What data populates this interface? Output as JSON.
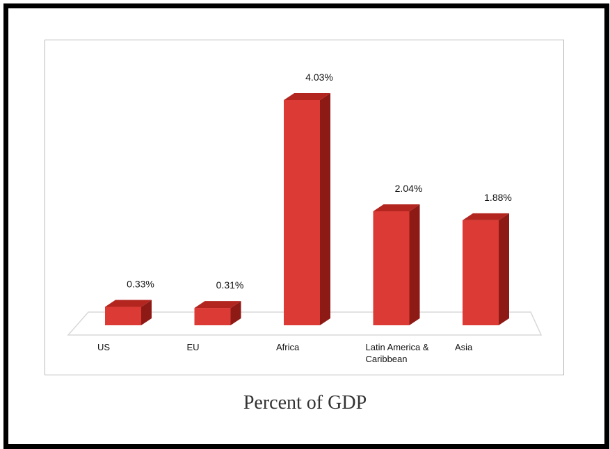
{
  "caption": "Percent of GDP",
  "chart_data": {
    "type": "bar",
    "categories": [
      "US",
      "EU",
      "Africa",
      "Latin America & Caribbean",
      "Asia"
    ],
    "category_lines": [
      [
        "US"
      ],
      [
        "EU"
      ],
      [
        "Africa"
      ],
      [
        "Latin America &",
        "Caribbean"
      ],
      [
        "Asia"
      ]
    ],
    "values": [
      0.33,
      0.31,
      4.03,
      2.04,
      1.88
    ],
    "value_labels": [
      "0.33%",
      "0.31%",
      "4.03%",
      "2.04%",
      "1.88%"
    ],
    "title": "",
    "xlabel": "",
    "ylabel": "",
    "ylim": [
      0,
      4.03
    ],
    "grid": false,
    "legend": "none",
    "style": "3d-column",
    "colors": {
      "front": "#dc3a35",
      "side": "#8e1a16",
      "top": "#b32620",
      "floor": "#d8d8d8"
    }
  }
}
